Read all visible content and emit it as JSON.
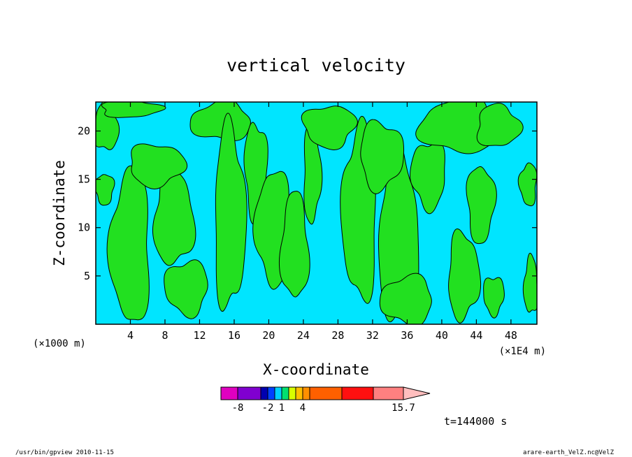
{
  "chart_data": {
    "type": "heatmap",
    "title": "vertical velocity",
    "xlabel": "X-coordinate",
    "ylabel": "Z-coordinate",
    "x_unit_left": "(×1000 m)",
    "x_unit_right": "(×1E4 m)",
    "xlim": [
      0,
      51
    ],
    "ylim": [
      0,
      23
    ],
    "x_ticks": [
      {
        "value": 4,
        "label": "4"
      },
      {
        "value": 8,
        "label": "8"
      },
      {
        "value": 12,
        "label": "12"
      },
      {
        "value": 16,
        "label": "16"
      },
      {
        "value": 20,
        "label": "20"
      },
      {
        "value": 24,
        "label": "24"
      },
      {
        "value": 28,
        "label": "28"
      },
      {
        "value": 32,
        "label": "32"
      },
      {
        "value": 36,
        "label": "36"
      },
      {
        "value": 40,
        "label": "40"
      },
      {
        "value": 44,
        "label": "44"
      },
      {
        "value": 48,
        "label": "48"
      }
    ],
    "y_ticks": [
      {
        "value": 5,
        "label": "5"
      },
      {
        "value": 10,
        "label": "10"
      },
      {
        "value": 15,
        "label": "15"
      },
      {
        "value": 20,
        "label": "20"
      }
    ],
    "field_colors": {
      "negative": "#00e5ff",
      "positive": "#22e020",
      "contour": "#000000"
    },
    "positive_regions": [
      {
        "xc": 1.2,
        "zc": 20.5,
        "rx": 1.4,
        "rz": 2.6
      },
      {
        "xc": 4.0,
        "zc": 22.3,
        "rx": 3.5,
        "rz": 0.9
      },
      {
        "xc": 1.0,
        "zc": 14.0,
        "rx": 1.1,
        "rz": 1.6
      },
      {
        "xc": 4.0,
        "zc": 8.0,
        "rx": 2.3,
        "rz": 8.0
      },
      {
        "xc": 9.0,
        "zc": 11.0,
        "rx": 2.3,
        "rz": 5.0
      },
      {
        "xc": 7.0,
        "zc": 16.5,
        "rx": 3.2,
        "rz": 2.2
      },
      {
        "xc": 10.5,
        "zc": 3.8,
        "rx": 2.5,
        "rz": 2.8
      },
      {
        "xc": 14.5,
        "zc": 21.0,
        "rx": 3.5,
        "rz": 2.0
      },
      {
        "xc": 15.5,
        "zc": 11.0,
        "rx": 1.8,
        "rz": 9.5
      },
      {
        "xc": 18.5,
        "zc": 16.0,
        "rx": 1.3,
        "rz": 5.0
      },
      {
        "xc": 20.5,
        "zc": 10.0,
        "rx": 2.0,
        "rz": 6.0
      },
      {
        "xc": 23.0,
        "zc": 8.0,
        "rx": 1.6,
        "rz": 5.5
      },
      {
        "xc": 25.0,
        "zc": 15.5,
        "rx": 1.0,
        "rz": 5.0
      },
      {
        "xc": 27.0,
        "zc": 20.5,
        "rx": 3.0,
        "rz": 2.2
      },
      {
        "xc": 30.5,
        "zc": 11.5,
        "rx": 2.0,
        "rz": 9.0
      },
      {
        "xc": 35.0,
        "zc": 9.0,
        "rx": 2.3,
        "rz": 9.0
      },
      {
        "xc": 33.0,
        "zc": 17.5,
        "rx": 2.5,
        "rz": 3.5
      },
      {
        "xc": 38.5,
        "zc": 15.5,
        "rx": 2.0,
        "rz": 3.5
      },
      {
        "xc": 42.0,
        "zc": 20.5,
        "rx": 4.5,
        "rz": 2.8
      },
      {
        "xc": 46.5,
        "zc": 20.5,
        "rx": 2.5,
        "rz": 2.2
      },
      {
        "xc": 44.5,
        "zc": 12.5,
        "rx": 1.6,
        "rz": 4.0
      },
      {
        "xc": 50.0,
        "zc": 14.5,
        "rx": 1.0,
        "rz": 2.2
      },
      {
        "xc": 50.3,
        "zc": 4.0,
        "rx": 0.8,
        "rz": 3.0
      },
      {
        "xc": 42.5,
        "zc": 5.0,
        "rx": 1.8,
        "rz": 4.5
      },
      {
        "xc": 46.0,
        "zc": 3.0,
        "rx": 1.2,
        "rz": 2.0
      },
      {
        "xc": 36.0,
        "zc": 2.5,
        "rx": 3.0,
        "rz": 2.5
      }
    ],
    "colorbar": {
      "segments": [
        {
          "color": "#e000c0"
        },
        {
          "color": "#8000d0"
        },
        {
          "color": "#0000b0"
        },
        {
          "color": "#0040ff"
        },
        {
          "color": "#00d0ff"
        },
        {
          "color": "#00e070"
        },
        {
          "color": "#d8ff00"
        },
        {
          "color": "#ffc000"
        },
        {
          "color": "#ff9000"
        },
        {
          "color": "#ff6000"
        },
        {
          "color": "#ff1010"
        },
        {
          "color": "#ff8080"
        },
        {
          "color": "#ffbebe"
        }
      ],
      "labels": [
        {
          "text": "-8",
          "at_segment_boundary": 1
        },
        {
          "text": "-2",
          "at_segment_boundary": 3
        },
        {
          "text": "1",
          "at_segment_boundary": 5
        },
        {
          "text": "4",
          "at_segment_boundary": 8
        },
        {
          "text": "15.7",
          "at_segment_boundary": 12
        }
      ]
    }
  },
  "time_label": "t=144000 s",
  "footer_left": "/usr/bin/gpview  2010-11-15",
  "footer_right": "arare-earth_VelZ.nc@VelZ"
}
